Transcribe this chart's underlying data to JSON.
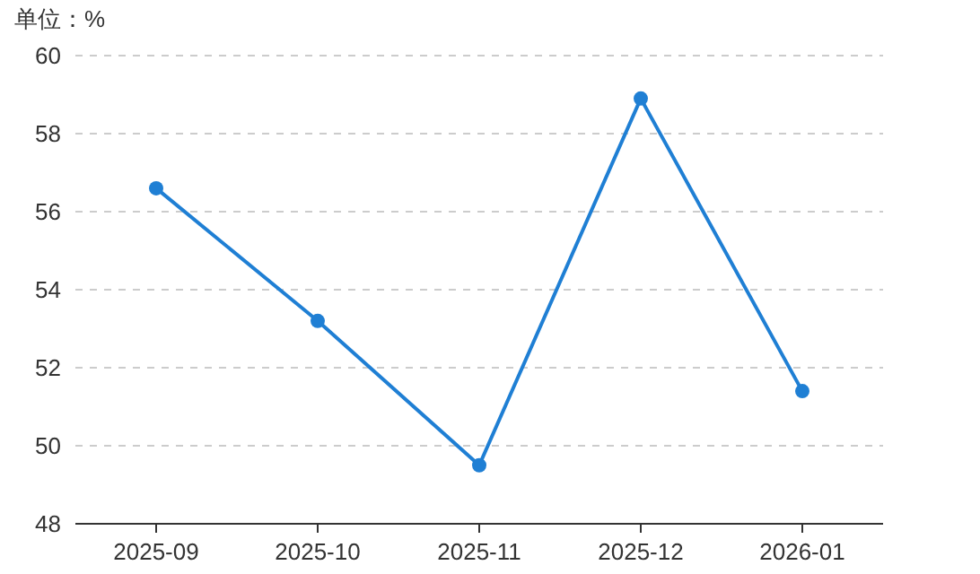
{
  "chart_data": {
    "type": "line",
    "ylabel": "单位：%",
    "categories": [
      "2025-09",
      "2025-10",
      "2025-11",
      "2025-12",
      "2026-01"
    ],
    "series": [
      {
        "color": "#1f7fd4",
        "values": [
          56.6,
          53.2,
          49.5,
          58.9,
          51.4
        ]
      }
    ],
    "ylim": [
      48,
      60
    ],
    "yticks": [
      48,
      50,
      52,
      54,
      56,
      58,
      60
    ],
    "grid": "y",
    "marker": "circle",
    "line_style": "solid"
  }
}
